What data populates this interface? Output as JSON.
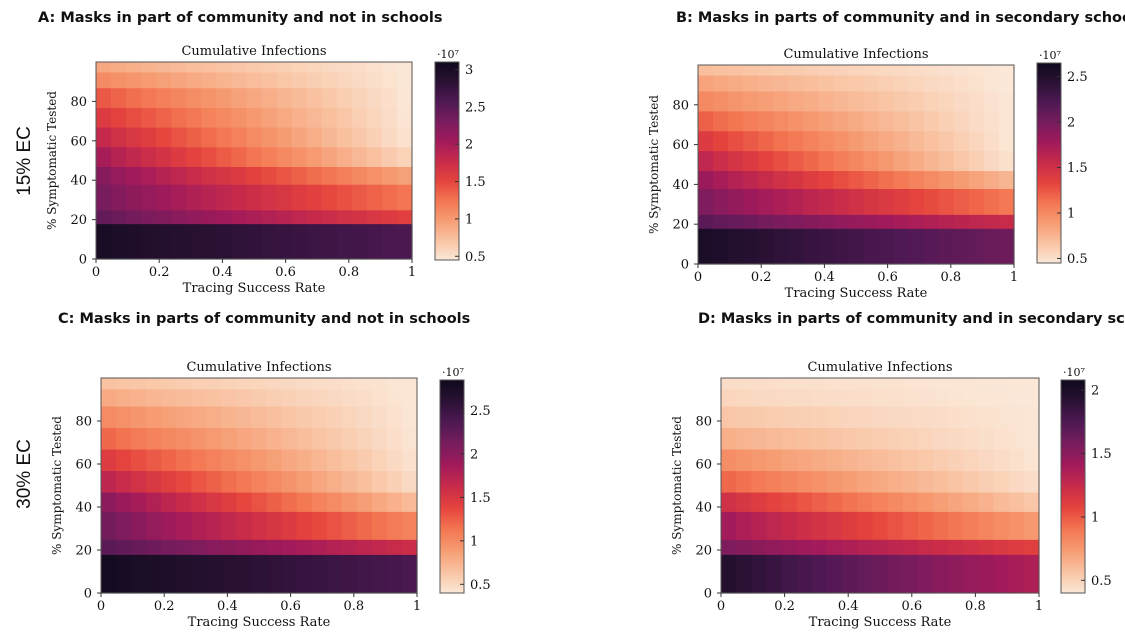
{
  "row_labels": [
    "15% EC",
    "30% EC"
  ],
  "chart_data": [
    {
      "type": "heatmap",
      "panel_title": "A: Masks in part of community and not in schools",
      "title": "Cumulative Infections",
      "xlabel": "Tracing Success Rate",
      "ylabel": "% Symptomatic Tested",
      "x_ticks": [
        "0",
        "0.2",
        "0.4",
        "0.6",
        "0.8",
        "1"
      ],
      "y_ticks": [
        "0",
        "20",
        "40",
        "60",
        "80"
      ],
      "xlim": [
        0,
        1
      ],
      "ylim": [
        0,
        100
      ],
      "colorbar": {
        "multiplier": "·10⁷",
        "ticks": [
          0.5,
          1,
          1.5,
          2,
          2.5,
          3
        ],
        "tick_labels": [
          "0.5",
          "1",
          "1.5",
          "2",
          "2.5",
          "3"
        ],
        "min": 0.45,
        "max": 3.1
      },
      "colormap": [
        "#fbe8d8",
        "#f9c3a2",
        "#f69c73",
        "#f37651",
        "#e5433d",
        "#c82b4a",
        "#a11a5b",
        "#781c5d",
        "#4f1954",
        "#2a1134",
        "#0f0a1c"
      ],
      "bands": [
        {
          "y": [
            0,
            18
          ],
          "values": [
            3.0,
            2.6
          ]
        },
        {
          "y": [
            18,
            25
          ],
          "values": [
            2.45,
            1.55
          ]
        },
        {
          "y": [
            25,
            38
          ],
          "values": [
            2.3,
            1.25
          ]
        },
        {
          "y": [
            38,
            47
          ],
          "values": [
            2.2,
            0.95
          ]
        },
        {
          "y": [
            47,
            57
          ],
          "values": [
            2.0,
            0.6
          ]
        },
        {
          "y": [
            57,
            67
          ],
          "values": [
            1.8,
            0.5
          ]
        },
        {
          "y": [
            67,
            77
          ],
          "values": [
            1.6,
            0.48
          ]
        },
        {
          "y": [
            77,
            87
          ],
          "values": [
            1.4,
            0.47
          ]
        },
        {
          "y": [
            87,
            95
          ],
          "values": [
            1.1,
            0.46
          ]
        },
        {
          "y": [
            95,
            100
          ],
          "values": [
            0.9,
            0.46
          ]
        }
      ]
    },
    {
      "type": "heatmap",
      "panel_title": "B: Masks in parts of community and in secondary schools",
      "title": "Cumulative Infections",
      "xlabel": "Tracing Success Rate",
      "ylabel": "% Symptomatic Tested",
      "x_ticks": [
        "0",
        "0.2",
        "0.4",
        "0.6",
        "0.8",
        "1"
      ],
      "y_ticks": [
        "0",
        "20",
        "40",
        "60",
        "80"
      ],
      "xlim": [
        0,
        1
      ],
      "ylim": [
        0,
        100
      ],
      "colorbar": {
        "multiplier": "·10⁷",
        "ticks": [
          0.5,
          1,
          1.5,
          2,
          2.5
        ],
        "tick_labels": [
          "0.5",
          "1",
          "1.5",
          "2",
          "2.5"
        ],
        "min": 0.45,
        "max": 2.65
      },
      "colormap": [
        "#fbe8d8",
        "#f9c3a2",
        "#f69c73",
        "#f37651",
        "#e5433d",
        "#c82b4a",
        "#a11a5b",
        "#781c5d",
        "#4f1954",
        "#2a1134",
        "#0f0a1c"
      ],
      "bands": [
        {
          "y": [
            0,
            18
          ],
          "values": [
            2.55,
            2.05
          ]
        },
        {
          "y": [
            18,
            25
          ],
          "values": [
            2.15,
            1.55
          ]
        },
        {
          "y": [
            25,
            38
          ],
          "values": [
            1.95,
            1.1
          ]
        },
        {
          "y": [
            38,
            47
          ],
          "values": [
            1.8,
            0.75
          ]
        },
        {
          "y": [
            47,
            57
          ],
          "values": [
            1.6,
            0.5
          ]
        },
        {
          "y": [
            57,
            67
          ],
          "values": [
            1.4,
            0.47
          ]
        },
        {
          "y": [
            67,
            77
          ],
          "values": [
            1.2,
            0.46
          ]
        },
        {
          "y": [
            77,
            87
          ],
          "values": [
            1.0,
            0.46
          ]
        },
        {
          "y": [
            87,
            95
          ],
          "values": [
            0.85,
            0.45
          ]
        },
        {
          "y": [
            95,
            100
          ],
          "values": [
            0.7,
            0.45
          ]
        }
      ]
    },
    {
      "type": "heatmap",
      "panel_title": "C: Masks in parts of community and not in schools",
      "title": "Cumulative Infections",
      "xlabel": "Tracing Success Rate",
      "ylabel": "% Symptomatic Tested",
      "x_ticks": [
        "0",
        "0.2",
        "0.4",
        "0.6",
        "0.8",
        "1"
      ],
      "y_ticks": [
        "0",
        "20",
        "40",
        "60",
        "80"
      ],
      "xlim": [
        0,
        1
      ],
      "ylim": [
        0,
        100
      ],
      "colorbar": {
        "multiplier": "·10⁷",
        "ticks": [
          0.5,
          1,
          1.5,
          2,
          2.5
        ],
        "tick_labels": [
          "0.5",
          "1",
          "1.5",
          "2",
          "2.5"
        ],
        "min": 0.4,
        "max": 2.85
      },
      "colormap": [
        "#fbe8d8",
        "#f9c3a2",
        "#f69c73",
        "#f37651",
        "#e5433d",
        "#c82b4a",
        "#a11a5b",
        "#781c5d",
        "#4f1954",
        "#2a1134",
        "#0f0a1c"
      ],
      "bands": [
        {
          "y": [
            0,
            18
          ],
          "values": [
            2.8,
            2.4
          ]
        },
        {
          "y": [
            18,
            25
          ],
          "values": [
            2.3,
            1.6
          ]
        },
        {
          "y": [
            25,
            38
          ],
          "values": [
            2.15,
            1.05
          ]
        },
        {
          "y": [
            38,
            47
          ],
          "values": [
            2.0,
            0.7
          ]
        },
        {
          "y": [
            47,
            57
          ],
          "values": [
            1.7,
            0.5
          ]
        },
        {
          "y": [
            57,
            67
          ],
          "values": [
            1.45,
            0.45
          ]
        },
        {
          "y": [
            67,
            77
          ],
          "values": [
            1.2,
            0.43
          ]
        },
        {
          "y": [
            77,
            87
          ],
          "values": [
            1.0,
            0.42
          ]
        },
        {
          "y": [
            87,
            95
          ],
          "values": [
            0.8,
            0.41
          ]
        },
        {
          "y": [
            95,
            100
          ],
          "values": [
            0.65,
            0.41
          ]
        }
      ]
    },
    {
      "type": "heatmap",
      "panel_title": "D: Masks in parts of community and in secondary schools",
      "title": "Cumulative Infections",
      "xlabel": "Tracing Success Rate",
      "ylabel": "% Symptomatic Tested",
      "x_ticks": [
        "0",
        "0.2",
        "0.4",
        "0.6",
        "0.8",
        "1"
      ],
      "y_ticks": [
        "0",
        "20",
        "40",
        "60",
        "80"
      ],
      "xlim": [
        0,
        1
      ],
      "ylim": [
        0,
        100
      ],
      "colorbar": {
        "multiplier": "·10⁷",
        "ticks": [
          0.5,
          1,
          1.5,
          2
        ],
        "tick_labels": [
          "0.5",
          "1",
          "1.5",
          "2"
        ],
        "min": 0.4,
        "max": 2.08
      },
      "colormap": [
        "#fbe8d8",
        "#f9c3a2",
        "#f69c73",
        "#f37651",
        "#e5433d",
        "#c82b4a",
        "#a11a5b",
        "#781c5d",
        "#4f1954",
        "#2a1134",
        "#0f0a1c"
      ],
      "bands": [
        {
          "y": [
            0,
            18
          ],
          "values": [
            1.95,
            1.35
          ]
        },
        {
          "y": [
            18,
            25
          ],
          "values": [
            1.55,
            1.1
          ]
        },
        {
          "y": [
            25,
            38
          ],
          "values": [
            1.4,
            0.75
          ]
        },
        {
          "y": [
            38,
            47
          ],
          "values": [
            1.2,
            0.55
          ]
        },
        {
          "y": [
            47,
            57
          ],
          "values": [
            0.95,
            0.45
          ]
        },
        {
          "y": [
            57,
            67
          ],
          "values": [
            0.8,
            0.42
          ]
        },
        {
          "y": [
            67,
            77
          ],
          "values": [
            0.65,
            0.41
          ]
        },
        {
          "y": [
            77,
            87
          ],
          "values": [
            0.55,
            0.41
          ]
        },
        {
          "y": [
            87,
            95
          ],
          "values": [
            0.48,
            0.4
          ]
        },
        {
          "y": [
            95,
            100
          ],
          "values": [
            0.45,
            0.4
          ]
        }
      ]
    }
  ]
}
